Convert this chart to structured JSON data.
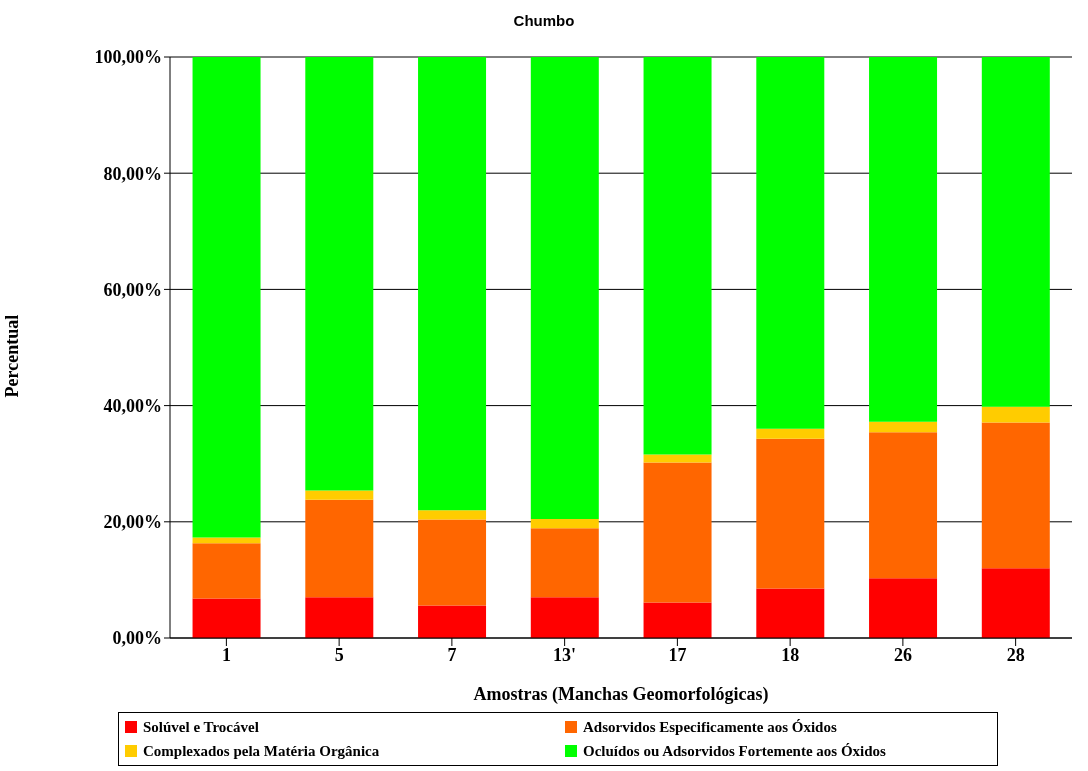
{
  "chart_data": {
    "type": "bar",
    "title": "Chumbo",
    "xlabel": "Amostras (Manchas Geomorfológicas)",
    "ylabel": "Percentual",
    "stacked": true,
    "categories": [
      "1",
      "5",
      "7",
      "13'",
      "17",
      "18",
      "26",
      "28"
    ],
    "series": [
      {
        "name": "Solúvel e Trocável",
        "color": "#ff0000",
        "values": [
          6.8,
          7.0,
          5.6,
          7.0,
          6.1,
          8.5,
          10.3,
          12.0
        ]
      },
      {
        "name": "Adsorvidos Especificamente aos Óxidos",
        "color": "#ff6600",
        "values": [
          9.5,
          16.8,
          14.8,
          11.9,
          24.1,
          25.8,
          25.1,
          25.1
        ]
      },
      {
        "name": "Complexados pela Matéria Orgânica",
        "color": "#ffcc00",
        "values": [
          1.0,
          1.6,
          1.6,
          1.6,
          1.4,
          1.7,
          1.8,
          2.7
        ]
      },
      {
        "name": "Ocluídos ou Adsorvidos Fortemente aos Óxidos",
        "color": "#00ff00",
        "values": [
          82.7,
          74.6,
          78.0,
          79.5,
          68.4,
          64.0,
          62.8,
          60.2
        ]
      }
    ],
    "ylim": [
      0,
      100
    ],
    "yticks": [
      {
        "value": 0,
        "label": "0,00%"
      },
      {
        "value": 20,
        "label": "20,00%"
      },
      {
        "value": 40,
        "label": "40,00%"
      },
      {
        "value": 60,
        "label": "60,00%"
      },
      {
        "value": 80,
        "label": "80,00%"
      },
      {
        "value": 100,
        "label": "100,00%"
      }
    ],
    "grid": "y",
    "legend": "bottom"
  }
}
